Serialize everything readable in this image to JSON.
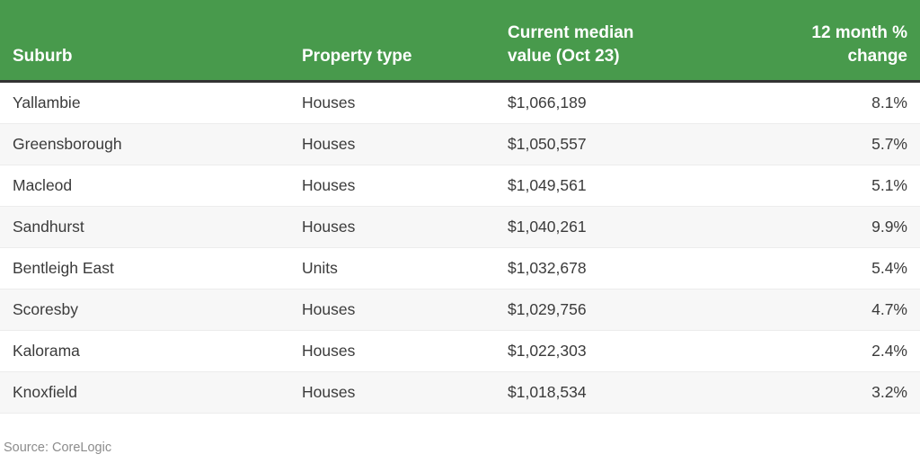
{
  "colors": {
    "header_bg": "#489a4c",
    "header_text": "#ffffff",
    "header_divider": "#333333",
    "row_alt_bg": "#f7f7f7",
    "row_divider": "#ececec",
    "cell_text": "#3b3b3b",
    "source_text": "#8c8c8c"
  },
  "footer": {
    "source_note": "Source: CoreLogic"
  },
  "chart_data": {
    "type": "table",
    "columns": [
      "Suburb",
      "Property type",
      "Current median value (Oct 23)",
      "12 month % change"
    ],
    "rows": [
      [
        "Yallambie",
        "Houses",
        "$1,066,189",
        "8.1%"
      ],
      [
        "Greensborough",
        "Houses",
        "$1,050,557",
        "5.7%"
      ],
      [
        "Macleod",
        "Houses",
        "$1,049,561",
        "5.1%"
      ],
      [
        "Sandhurst",
        "Houses",
        "$1,040,261",
        "9.9%"
      ],
      [
        "Bentleigh East",
        "Units",
        "$1,032,678",
        "5.4%"
      ],
      [
        "Scoresby",
        "Houses",
        "$1,029,756",
        "4.7%"
      ],
      [
        "Kalorama",
        "Houses",
        "$1,022,303",
        "2.4%"
      ],
      [
        "Knoxfield",
        "Houses",
        "$1,018,534",
        "3.2%"
      ]
    ],
    "source_note": "Source: CoreLogic"
  }
}
